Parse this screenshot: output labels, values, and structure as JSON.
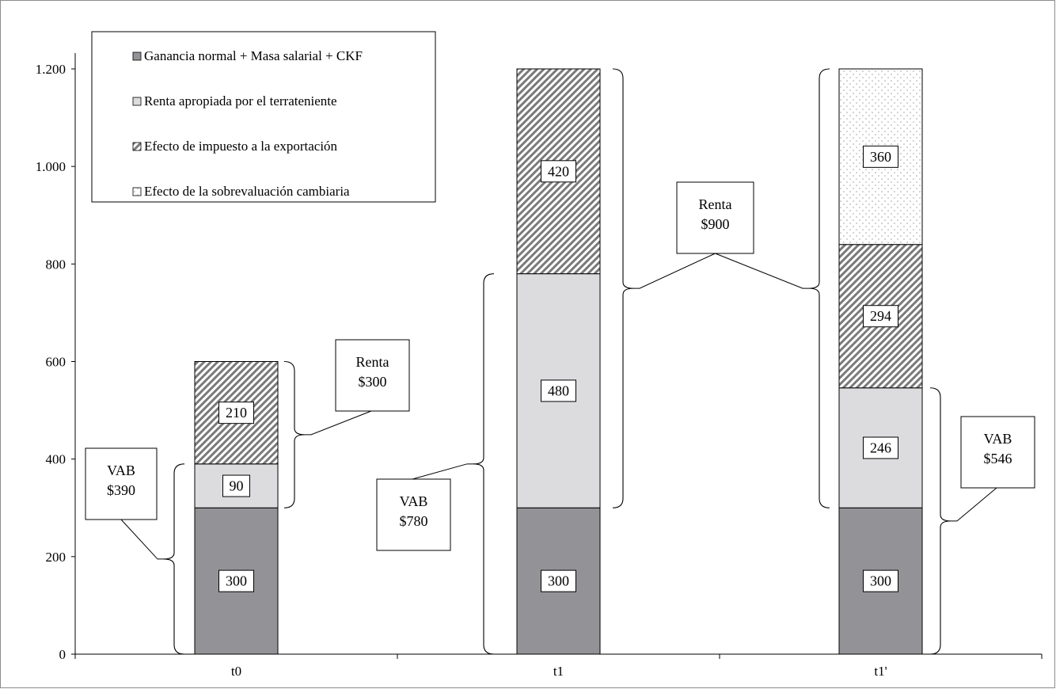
{
  "chart_data": {
    "type": "bar",
    "stacked": true,
    "categories": [
      "t0",
      "t1",
      "t1'"
    ],
    "series": [
      {
        "name": "Ganancia normal + Masa salarial + CKF",
        "values": [
          300,
          300,
          300
        ],
        "color": "#939397",
        "pattern": "solid"
      },
      {
        "name": "Renta apropiada por el terrateniente",
        "values": [
          90,
          480,
          246
        ],
        "color": "#dcdcde",
        "pattern": "solid"
      },
      {
        "name": "Efecto de impuesto a la exportación",
        "values": [
          210,
          420,
          294
        ],
        "color": "#7a7a7a",
        "pattern": "diagonal-hatch"
      },
      {
        "name": "Efecto de la sobrevaluación cambiaria",
        "values": [
          0,
          0,
          360
        ],
        "color": "#9a9a9a",
        "pattern": "dots"
      }
    ],
    "ylim": [
      0,
      1200
    ],
    "yticks": [
      0,
      200,
      400,
      600,
      800,
      1000,
      1200
    ],
    "ytick_labels": [
      "0",
      "200",
      "400",
      "600",
      "800",
      "1.000",
      "1.200"
    ],
    "grid": false,
    "legend_position": "top-left",
    "annotations": [
      {
        "category": "t0",
        "lines": [
          "VAB",
          "$390"
        ],
        "side": "left",
        "from": 0,
        "to": 390
      },
      {
        "category": "t0",
        "lines": [
          "Renta",
          "$300"
        ],
        "side": "right",
        "from": 300,
        "to": 600
      },
      {
        "category": "t1",
        "lines": [
          "VAB",
          "$780"
        ],
        "side": "left",
        "from": 0,
        "to": 780
      },
      {
        "category": "t1",
        "lines": [
          "Renta",
          "$900"
        ],
        "side": "right",
        "from": 300,
        "to": 1200
      },
      {
        "category": "t1'",
        "lines": [
          "VAB",
          "$546"
        ],
        "side": "right",
        "from": 0,
        "to": 546
      }
    ]
  }
}
